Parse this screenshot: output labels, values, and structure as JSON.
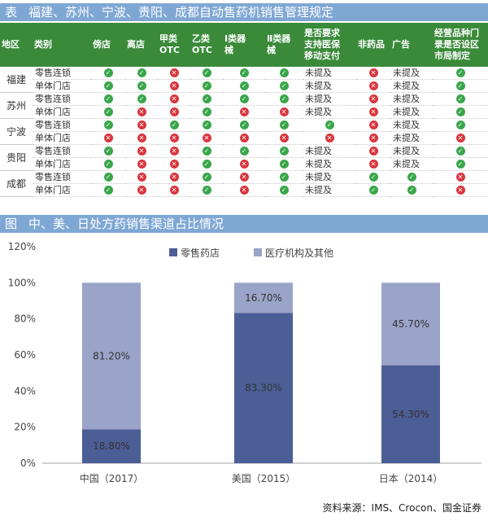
{
  "table": {
    "prefix": "表",
    "title": "福建、苏州、宁波、贵阳、成都自动售药机销售管理规定",
    "headers": [
      "地区",
      "类别",
      "傍店",
      "离店",
      "甲类\nOTC",
      "乙类\nOTC",
      "Ⅰ类器\n械",
      "Ⅱ类器\n械",
      "是否要求\n支持医保\n移动支付",
      "非药品",
      "广告",
      "经营品种门\n录是否设区\n市局制定"
    ],
    "groups": [
      {
        "region": "福建",
        "rows": [
          {
            "type": "零售连锁",
            "cells": [
              "yes",
              "yes",
              "no",
              "yes",
              "yes",
              "yes",
              "未提及",
              "no",
              "未提及",
              "yes"
            ]
          },
          {
            "type": "单体门店",
            "cells": [
              "yes",
              "yes",
              "no",
              "yes",
              "yes",
              "yes",
              "未提及",
              "no",
              "未提及",
              "yes"
            ]
          }
        ]
      },
      {
        "region": "苏州",
        "rows": [
          {
            "type": "零售连锁",
            "cells": [
              "yes",
              "yes",
              "no",
              "yes",
              "yes",
              "yes",
              "未提及",
              "no",
              "未提及",
              "yes"
            ]
          },
          {
            "type": "单体门店",
            "cells": [
              "yes",
              "no",
              "no",
              "yes",
              "no",
              "no",
              "未提及",
              "no",
              "未提及",
              "yes"
            ]
          }
        ]
      },
      {
        "region": "宁波",
        "rows": [
          {
            "type": "零售连锁",
            "cells": [
              "yes",
              "no",
              "yes",
              "yes",
              "yes",
              "yes",
              "yes",
              "no",
              "未提及",
              "yes"
            ]
          },
          {
            "type": "单体门店",
            "cells": [
              "no",
              "no",
              "no",
              "no",
              "no",
              "no",
              "no",
              "no",
              "未提及",
              "no"
            ]
          }
        ]
      },
      {
        "region": "贵阳",
        "rows": [
          {
            "type": "零售连锁",
            "cells": [
              "yes",
              "no",
              "no",
              "yes",
              "yes",
              "yes",
              "未提及",
              "no",
              "未提及",
              "yes"
            ]
          },
          {
            "type": "单体门店",
            "cells": [
              "yes",
              "no",
              "no",
              "yes",
              "no",
              "yes",
              "未提及",
              "no",
              "未提及",
              "yes"
            ]
          }
        ]
      },
      {
        "region": "成都",
        "rows": [
          {
            "type": "零售连锁",
            "cells": [
              "yes",
              "no",
              "no",
              "yes",
              "no",
              "yes",
              "未提及",
              "yes",
              "yes",
              "no"
            ]
          },
          {
            "type": "单体门店",
            "cells": [
              "yes",
              "no",
              "no",
              "yes",
              "no",
              "yes",
              "未提及",
              "yes",
              "yes",
              "no"
            ]
          }
        ]
      }
    ]
  },
  "chart_title": {
    "prefix": "图",
    "text": "中、美、日处方药销售渠道占比情况"
  },
  "chart_data": {
    "type": "bar",
    "stacked": true,
    "categories": [
      "中国（2017）",
      "美国（2015）",
      "日本（2014）"
    ],
    "series": [
      {
        "name": "零售药店",
        "values": [
          18.8,
          83.3,
          54.3
        ],
        "labels": [
          "18.80%",
          "83.30%",
          "54.30%"
        ],
        "color": "#4b5e96"
      },
      {
        "name": "医疗机构及其他",
        "values": [
          81.2,
          16.7,
          45.7
        ],
        "labels": [
          "81.20%",
          "16.70%",
          "45.70%"
        ],
        "color": "#9aa3c8"
      }
    ],
    "yticks": [
      "0%",
      "20%",
      "40%",
      "60%",
      "80%",
      "100%",
      "120%"
    ],
    "ylim": [
      0,
      120
    ],
    "legend_position": "top",
    "grid": false
  },
  "source": "资料来源：IMS、Crocon、国金证券",
  "colors": {
    "title_bar": "#7fa7d4",
    "header_bg": "#3a8a3a",
    "yes": "#3aa64a",
    "no": "#d9363e"
  }
}
